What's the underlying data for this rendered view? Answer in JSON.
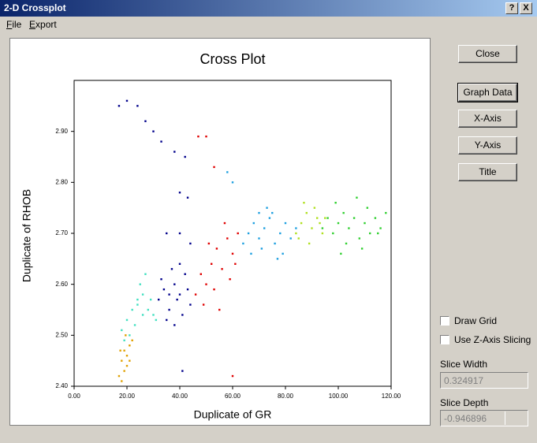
{
  "window": {
    "title": "2-D Crossplot",
    "help": "?",
    "close": "X"
  },
  "menu": [
    "File",
    "Export"
  ],
  "buttons": [
    "Close",
    "Graph Data",
    "X-Axis",
    "Y-Axis",
    "Title"
  ],
  "checkboxes": [
    "Draw Grid",
    "Use Z-Axis Slicing"
  ],
  "fields": [
    {
      "label": "Slice Width",
      "value": "0.324917"
    },
    {
      "label": "Slice Depth",
      "value": "-0.946896"
    }
  ],
  "chart_data": {
    "type": "scatter",
    "title": "Cross Plot",
    "x_label": "Duplicate of GR",
    "y_label": "Duplicate of RHOB",
    "xlim": [
      0,
      120
    ],
    "ylim": [
      2.4,
      3.0
    ],
    "xticks": [
      {
        "value": 0,
        "label": "0.00"
      },
      {
        "value": 20,
        "label": "20.00"
      },
      {
        "value": 40,
        "label": "40.00"
      },
      {
        "value": 60,
        "label": "60.00"
      },
      {
        "value": 80,
        "label": "80.00"
      },
      {
        "value": 100,
        "label": "100.00"
      },
      {
        "value": 120,
        "label": "120.00"
      }
    ],
    "yticks": [
      {
        "value": 2.4,
        "label": "2.40"
      },
      {
        "value": 2.5,
        "label": "2.50"
      },
      {
        "value": 2.6,
        "label": "2.60"
      },
      {
        "value": 2.7,
        "label": "2.70"
      },
      {
        "value": 2.8,
        "label": "2.80"
      },
      {
        "value": 2.9,
        "label": "2.90"
      }
    ],
    "grid": false,
    "series": [
      {
        "color": "#e0a000",
        "x": [
          17,
          18,
          19,
          20,
          21,
          18,
          19,
          20,
          22,
          17.5,
          19.5,
          21
        ],
        "values": [
          2.42,
          2.45,
          2.47,
          2.44,
          2.48,
          2.41,
          2.43,
          2.46,
          2.49,
          2.47,
          2.5,
          2.45
        ]
      },
      {
        "color": "#40e0c0",
        "x": [
          18,
          20,
          22,
          24,
          26,
          28,
          30,
          21,
          23,
          25,
          27,
          29,
          31,
          19,
          24,
          26
        ],
        "values": [
          2.51,
          2.53,
          2.55,
          2.57,
          2.58,
          2.55,
          2.54,
          2.5,
          2.52,
          2.6,
          2.62,
          2.57,
          2.53,
          2.49,
          2.56,
          2.54
        ]
      },
      {
        "color": "#00008b",
        "x": [
          32,
          34,
          36,
          38,
          40,
          42,
          44,
          35,
          37,
          39,
          41,
          43,
          33,
          38,
          40,
          36,
          17,
          20,
          24,
          27,
          30,
          33,
          38,
          42,
          40,
          43,
          35,
          40,
          44,
          41
        ],
        "values": [
          2.57,
          2.59,
          2.55,
          2.6,
          2.58,
          2.62,
          2.56,
          2.53,
          2.63,
          2.57,
          2.54,
          2.59,
          2.61,
          2.52,
          2.64,
          2.58,
          2.95,
          2.96,
          2.95,
          2.92,
          2.9,
          2.88,
          2.86,
          2.85,
          2.78,
          2.77,
          2.7,
          2.7,
          2.68,
          2.43
        ]
      },
      {
        "color": "#e00000",
        "x": [
          46,
          48,
          50,
          52,
          54,
          56,
          58,
          60,
          62,
          49,
          53,
          57,
          61,
          51,
          55,
          59,
          47,
          50,
          53,
          60
        ],
        "values": [
          2.58,
          2.62,
          2.6,
          2.64,
          2.67,
          2.63,
          2.69,
          2.66,
          2.7,
          2.56,
          2.59,
          2.72,
          2.64,
          2.68,
          2.55,
          2.61,
          2.89,
          2.89,
          2.83,
          2.42
        ]
      },
      {
        "color": "#1ea0e0",
        "x": [
          64,
          66,
          68,
          70,
          72,
          74,
          76,
          78,
          80,
          82,
          84,
          67,
          71,
          75,
          79,
          73,
          77,
          60,
          58,
          70
        ],
        "values": [
          2.68,
          2.7,
          2.72,
          2.69,
          2.71,
          2.73,
          2.68,
          2.7,
          2.72,
          2.69,
          2.71,
          2.66,
          2.67,
          2.74,
          2.66,
          2.75,
          2.65,
          2.8,
          2.82,
          2.74
        ]
      },
      {
        "color": "#b0e020",
        "x": [
          84,
          86,
          88,
          90,
          92,
          94,
          87,
          89,
          91,
          93,
          85,
          95
        ],
        "values": [
          2.7,
          2.72,
          2.74,
          2.71,
          2.73,
          2.7,
          2.76,
          2.68,
          2.75,
          2.72,
          2.69,
          2.73
        ]
      },
      {
        "color": "#30d030",
        "x": [
          94,
          96,
          98,
          100,
          102,
          104,
          106,
          108,
          110,
          112,
          114,
          116,
          118,
          99,
          103,
          107,
          111,
          115,
          101,
          109
        ],
        "values": [
          2.71,
          2.73,
          2.7,
          2.72,
          2.74,
          2.71,
          2.73,
          2.69,
          2.72,
          2.7,
          2.73,
          2.71,
          2.74,
          2.76,
          2.68,
          2.77,
          2.75,
          2.7,
          2.66,
          2.67
        ]
      }
    ]
  }
}
